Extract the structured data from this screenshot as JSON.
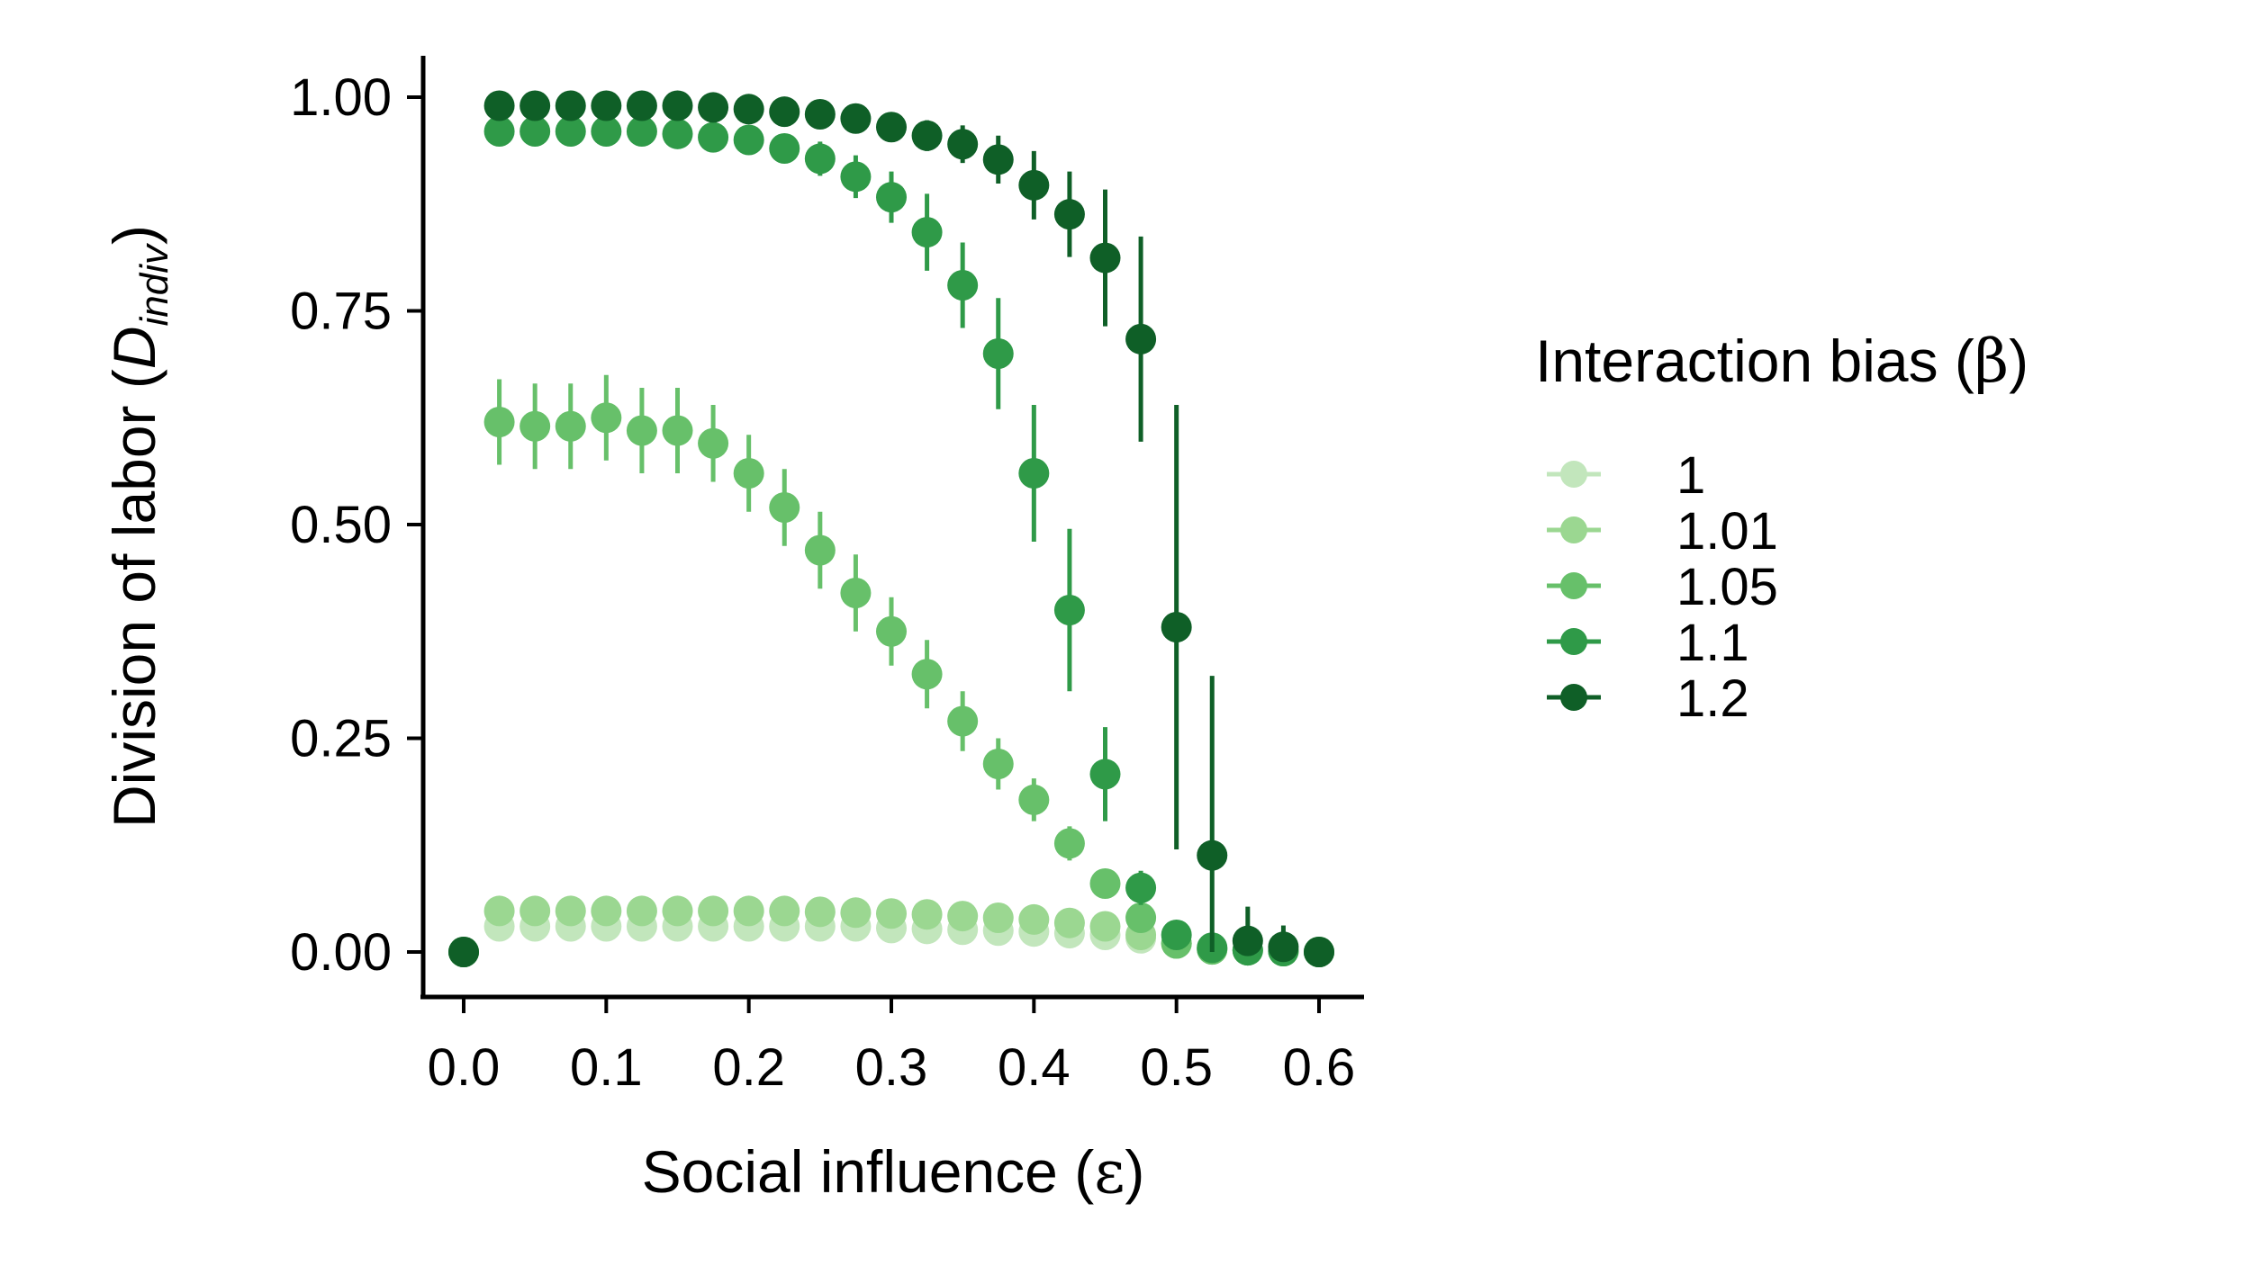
{
  "chart_data": {
    "type": "scatter",
    "xlabel": "Social influence (ε)",
    "xlabel_parts": {
      "text": "Social influence (",
      "symbol": "ε",
      "close": ")"
    },
    "ylabel_parts": {
      "text": "Division of labor (",
      "var": "D",
      "sub": "indiv",
      "close": ")"
    },
    "xlim": [
      0.0,
      0.6
    ],
    "ylim": [
      0.0,
      1.0
    ],
    "xticks": [
      "0.0",
      "0.1",
      "0.2",
      "0.3",
      "0.4",
      "0.5",
      "0.6"
    ],
    "yticks": [
      "0.00",
      "0.25",
      "0.50",
      "0.75",
      "1.00"
    ],
    "grid": false,
    "legend": {
      "title_text": "Interaction bias (",
      "title_symbol": "β",
      "title_close": ")",
      "position": "right"
    },
    "x": [
      0.0,
      0.025,
      0.05,
      0.075,
      0.1,
      0.125,
      0.15,
      0.175,
      0.2,
      0.225,
      0.25,
      0.275,
      0.3,
      0.325,
      0.35,
      0.375,
      0.4,
      0.425,
      0.45,
      0.475,
      0.5,
      0.525,
      0.55,
      0.575,
      0.6
    ],
    "series": [
      {
        "name": "1",
        "color": "#c2e6bc",
        "values": [
          0.0,
          0.03,
          0.03,
          0.03,
          0.03,
          0.03,
          0.03,
          0.03,
          0.03,
          0.03,
          0.03,
          0.03,
          0.028,
          0.027,
          0.026,
          0.025,
          0.024,
          0.022,
          0.02,
          0.016,
          0.01,
          0.004,
          0.002,
          0.001,
          0.0
        ],
        "errors": [
          0,
          0.006,
          0.006,
          0.006,
          0.006,
          0.006,
          0.006,
          0.006,
          0.006,
          0.006,
          0.006,
          0.006,
          0.006,
          0.006,
          0.006,
          0.006,
          0.006,
          0.006,
          0.005,
          0.005,
          0.004,
          0.003,
          0.002,
          0.001,
          0
        ]
      },
      {
        "name": "1.01",
        "color": "#9bd791",
        "values": [
          0.0,
          0.048,
          0.048,
          0.048,
          0.048,
          0.048,
          0.048,
          0.048,
          0.048,
          0.048,
          0.047,
          0.046,
          0.045,
          0.044,
          0.042,
          0.04,
          0.038,
          0.034,
          0.03,
          0.02,
          0.01,
          0.003,
          0.002,
          0.001,
          0.0
        ],
        "errors": [
          0,
          0.006,
          0.006,
          0.006,
          0.006,
          0.006,
          0.006,
          0.006,
          0.006,
          0.006,
          0.006,
          0.006,
          0.006,
          0.006,
          0.006,
          0.006,
          0.006,
          0.006,
          0.005,
          0.005,
          0.004,
          0.003,
          0.002,
          0.001,
          0
        ]
      },
      {
        "name": "1.05",
        "color": "#67c06a",
        "values": [
          0.0,
          0.62,
          0.615,
          0.615,
          0.625,
          0.61,
          0.61,
          0.595,
          0.56,
          0.52,
          0.47,
          0.42,
          0.375,
          0.325,
          0.27,
          0.22,
          0.178,
          0.127,
          0.08,
          0.04,
          0.01,
          0.003,
          0.002,
          0.001,
          0.0
        ],
        "errors": [
          0,
          0.05,
          0.05,
          0.05,
          0.05,
          0.05,
          0.05,
          0.045,
          0.045,
          0.045,
          0.045,
          0.045,
          0.04,
          0.04,
          0.035,
          0.03,
          0.025,
          0.02,
          0.015,
          0.01,
          0.005,
          0.003,
          0.002,
          0.001,
          0
        ]
      },
      {
        "name": "1.1",
        "color": "#2f9a48",
        "values": [
          0.0,
          0.96,
          0.96,
          0.96,
          0.96,
          0.96,
          0.957,
          0.953,
          0.95,
          0.94,
          0.928,
          0.907,
          0.883,
          0.842,
          0.78,
          0.7,
          0.56,
          0.4,
          0.208,
          0.075,
          0.02,
          0.005,
          0.002,
          0.001,
          0.0
        ],
        "errors": [
          0,
          0.01,
          0.01,
          0.01,
          0.01,
          0.01,
          0.01,
          0.01,
          0.012,
          0.015,
          0.02,
          0.025,
          0.03,
          0.045,
          0.05,
          0.065,
          0.08,
          0.095,
          0.055,
          0.02,
          0.01,
          0.005,
          0.003,
          0.001,
          0
        ]
      },
      {
        "name": "1.2",
        "color": "#0f5f27",
        "values": [
          0.0,
          0.99,
          0.99,
          0.99,
          0.99,
          0.99,
          0.99,
          0.988,
          0.986,
          0.983,
          0.98,
          0.975,
          0.965,
          0.955,
          0.945,
          0.927,
          0.897,
          0.863,
          0.812,
          0.717,
          0.38,
          0.113,
          0.013,
          0.006,
          0.0
        ],
        "errors": [
          0,
          0.005,
          0.005,
          0.005,
          0.005,
          0.005,
          0.005,
          0.005,
          0.005,
          0.005,
          0.006,
          0.008,
          0.012,
          0.018,
          0.022,
          0.028,
          0.04,
          0.05,
          0.08,
          0.12,
          0.26,
          0.21,
          0.04,
          0.025,
          0.003
        ]
      }
    ]
  }
}
